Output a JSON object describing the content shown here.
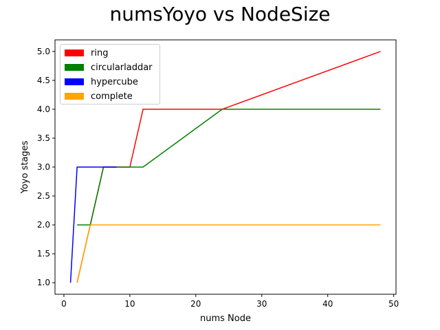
{
  "chart_data": {
    "type": "line",
    "title": "numsYoyo vs NodeSize",
    "xlabel": "nums Node",
    "ylabel": "Yoyo stages",
    "xlim": [
      -1.35,
      50.35
    ],
    "ylim": [
      0.8,
      5.2
    ],
    "xticks": [
      0,
      10,
      20,
      30,
      40,
      50
    ],
    "yticks": [
      1.0,
      1.5,
      2.0,
      2.5,
      3.0,
      3.5,
      4.0,
      4.5,
      5.0
    ],
    "xtick_labels": [
      "0",
      "10",
      "20",
      "30",
      "40",
      "50"
    ],
    "ytick_labels": [
      "1.0",
      "1.5",
      "2.0",
      "2.5",
      "3.0",
      "3.5",
      "4.0",
      "4.5",
      "5.0"
    ],
    "legend_position": "upper-left",
    "grid": false,
    "series": [
      {
        "name": "ring",
        "color": "#ff0000",
        "x": [
          2,
          4,
          6,
          8,
          10,
          12,
          24,
          48
        ],
        "y": [
          1,
          2,
          3,
          3,
          3,
          4,
          4,
          5
        ]
      },
      {
        "name": "circularladdar",
        "color": "#008000",
        "x": [
          2,
          4,
          6,
          8,
          12,
          24,
          48
        ],
        "y": [
          2,
          2,
          3,
          3,
          3,
          4,
          4
        ]
      },
      {
        "name": "hypercube",
        "color": "#0000ff",
        "x": [
          1,
          2,
          4,
          8
        ],
        "y": [
          1,
          3,
          3,
          3
        ]
      },
      {
        "name": "complete",
        "color": "#ffa500",
        "x": [
          2,
          4,
          8,
          16,
          48
        ],
        "y": [
          1,
          2,
          2,
          2,
          2
        ]
      }
    ]
  }
}
